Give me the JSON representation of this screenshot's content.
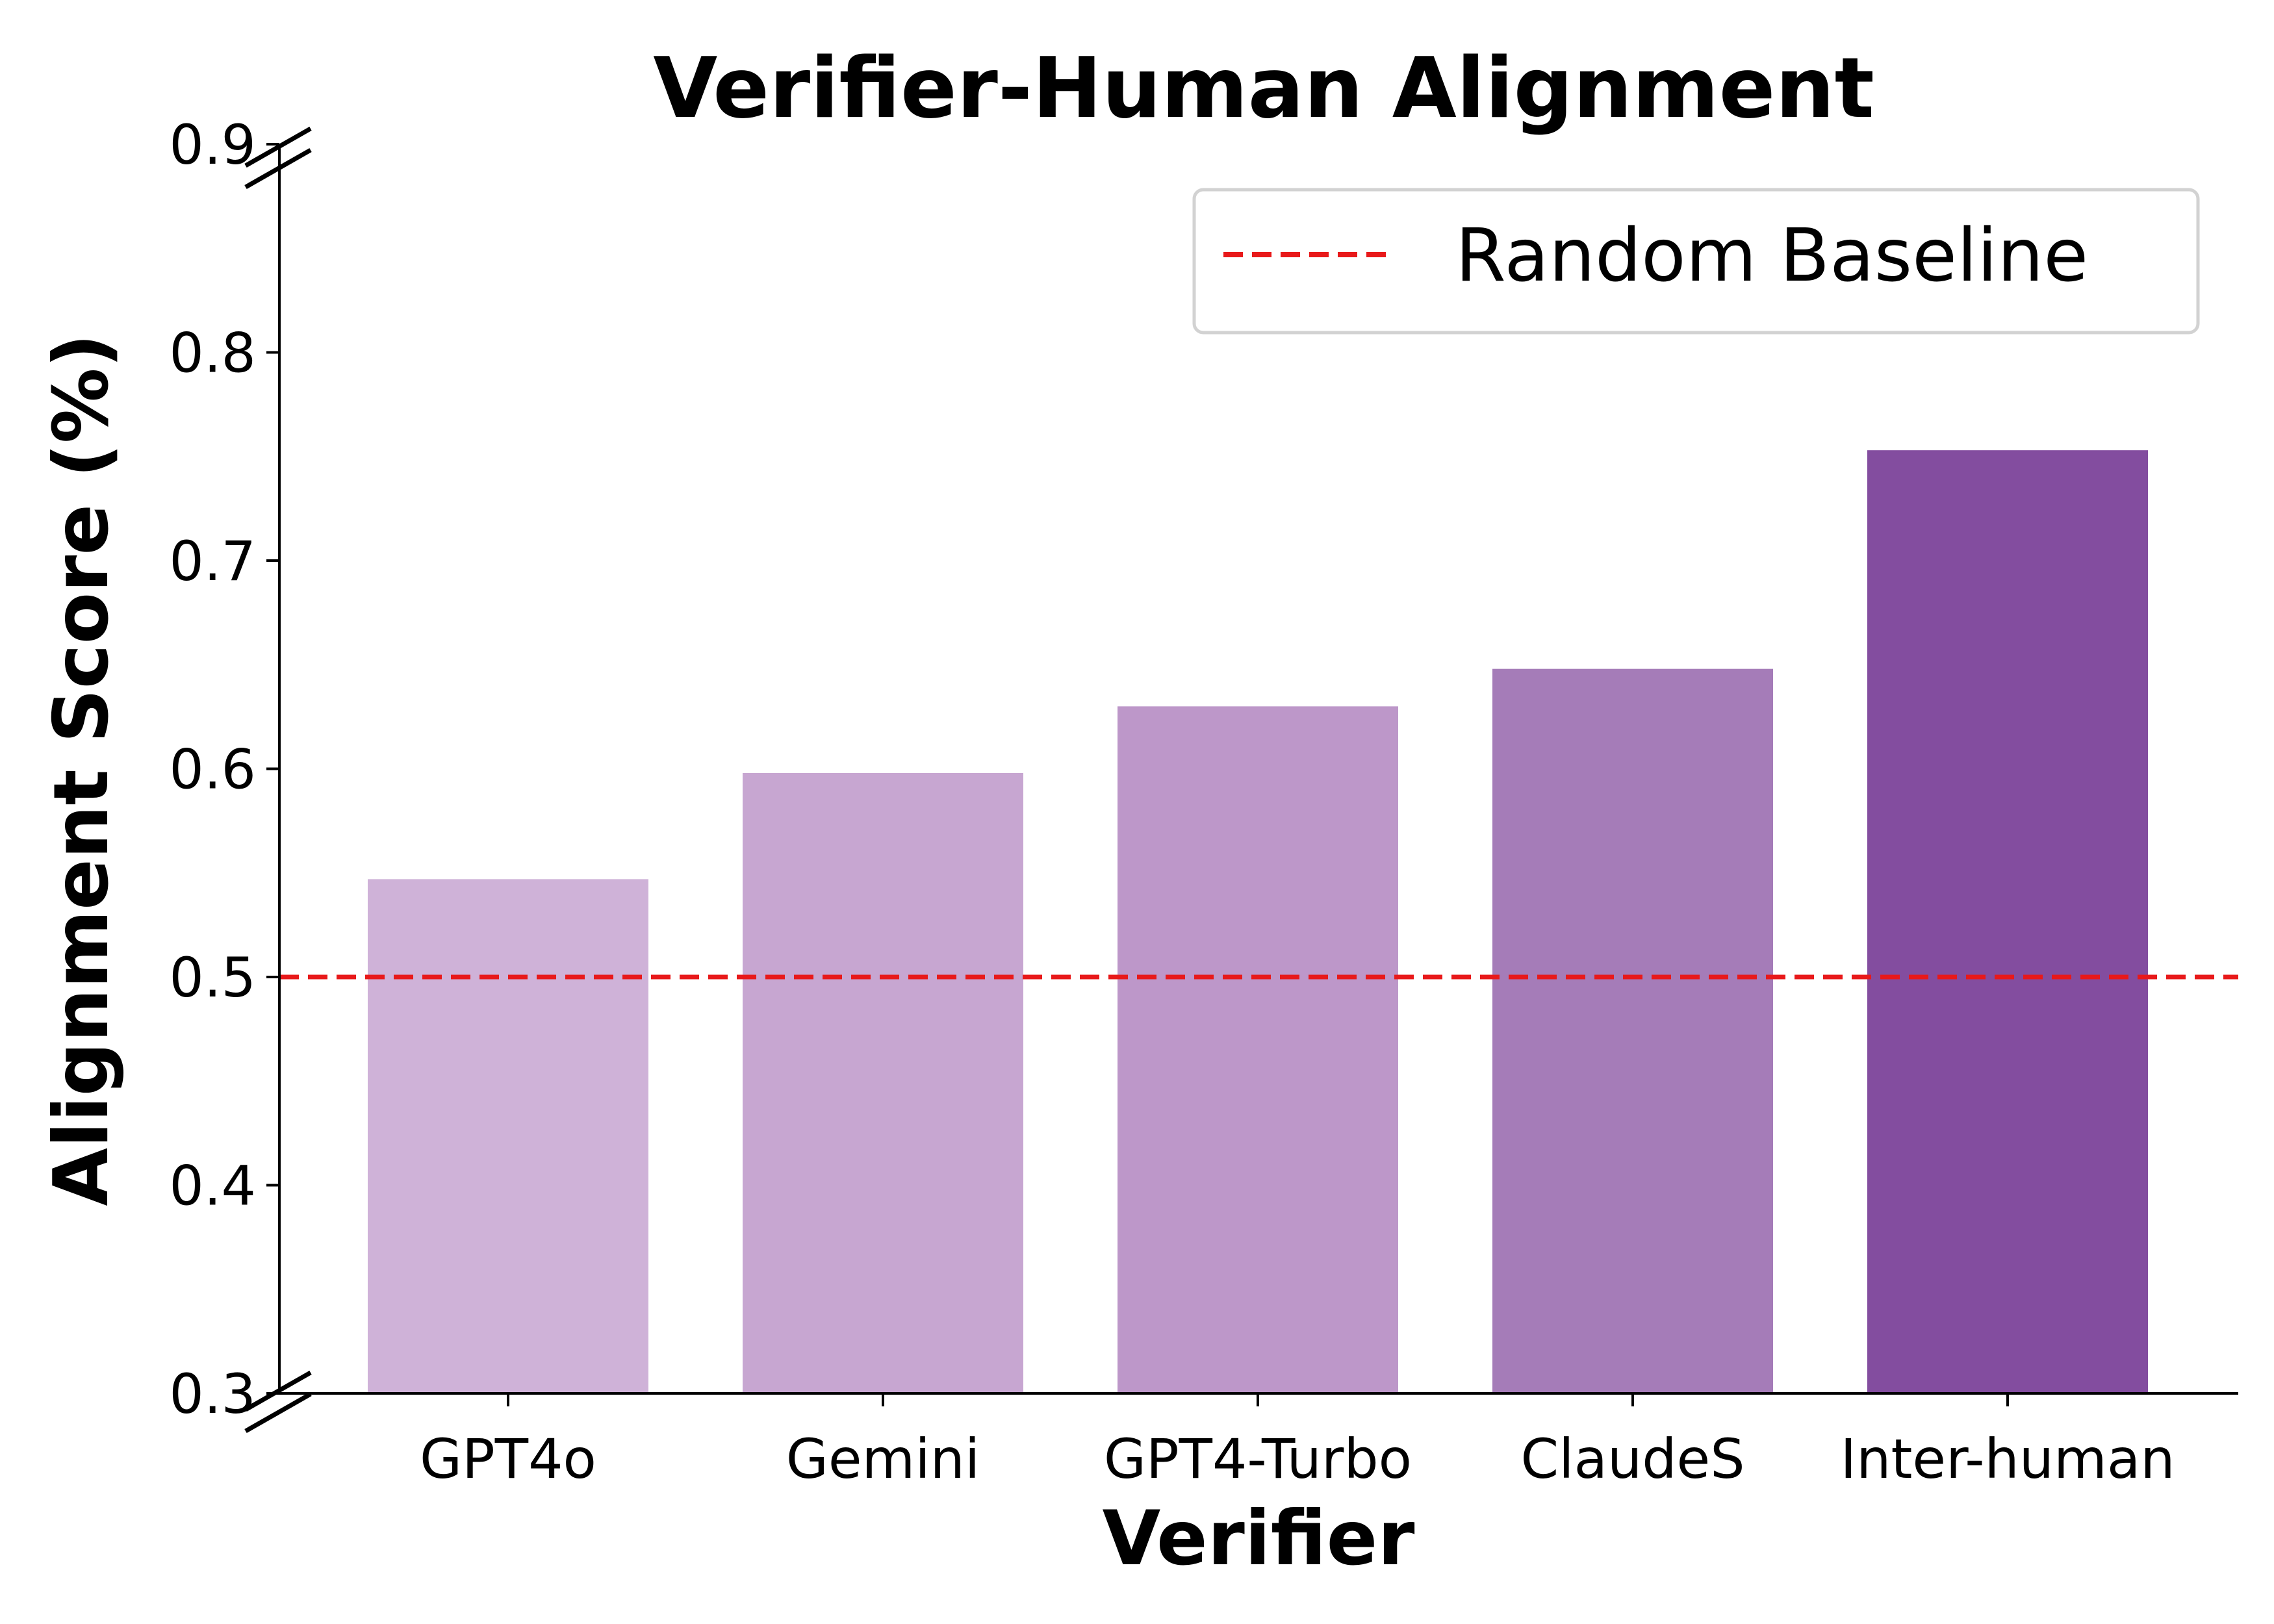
{
  "chart_data": {
    "type": "bar",
    "title": "Verifier-Human Alignment",
    "xlabel": "Verifier",
    "ylabel": "Alignment Score (%)",
    "categories": [
      "GPT4o",
      "Gemini",
      "GPT4-Turbo",
      "ClaudeS",
      "Inter-human"
    ],
    "values": [
      0.547,
      0.598,
      0.63,
      0.648,
      0.753
    ],
    "bar_colors": [
      "#cfb2d8",
      "#c7a6d1",
      "#bd97c9",
      "#a57cb8",
      "#834d9f"
    ],
    "ylim": [
      0.3,
      0.9
    ],
    "yticks": [
      "0.3",
      "0.4",
      "0.5",
      "0.6",
      "0.7",
      "0.8",
      "0.9"
    ],
    "axis_break": true,
    "grid": false,
    "baseline": {
      "label": "Random Baseline",
      "value": 0.5,
      "color": "#e8191a",
      "style": "dashed"
    },
    "legend_position": "top-right"
  }
}
